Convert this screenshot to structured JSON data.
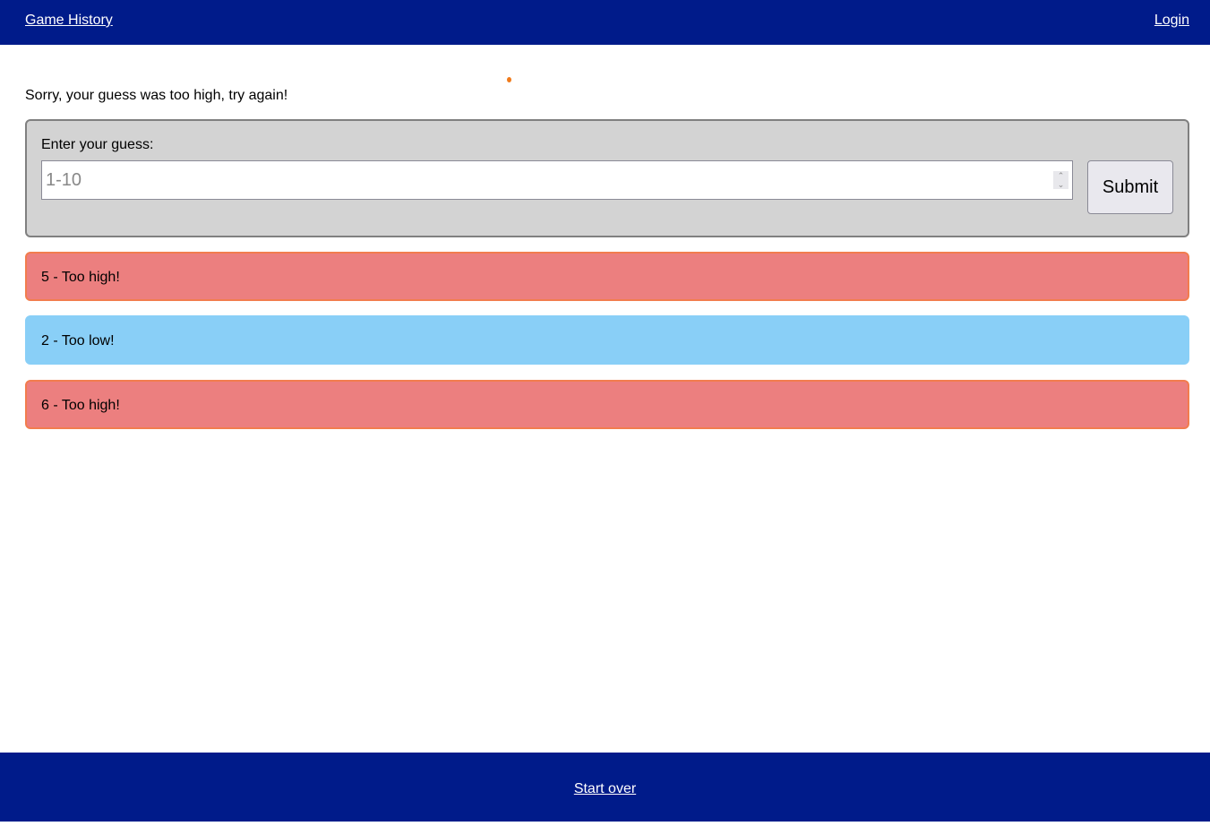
{
  "nav": {
    "game_history": "Game History",
    "login": "Login"
  },
  "message": "Sorry, your guess was too high, try again!",
  "form": {
    "label": "Enter your guess:",
    "placeholder": "1-10",
    "value": "",
    "submit": "Submit"
  },
  "guesses": [
    {
      "text": "5 - Too high!",
      "result": "high"
    },
    {
      "text": "2 - Too low!",
      "result": "low"
    },
    {
      "text": "6 - Too high!",
      "result": "high"
    }
  ],
  "footer": {
    "start_over": "Start over"
  },
  "colors": {
    "nav": "#001b8a",
    "too_high": "#ec7f7f",
    "too_low": "#89cff7"
  }
}
